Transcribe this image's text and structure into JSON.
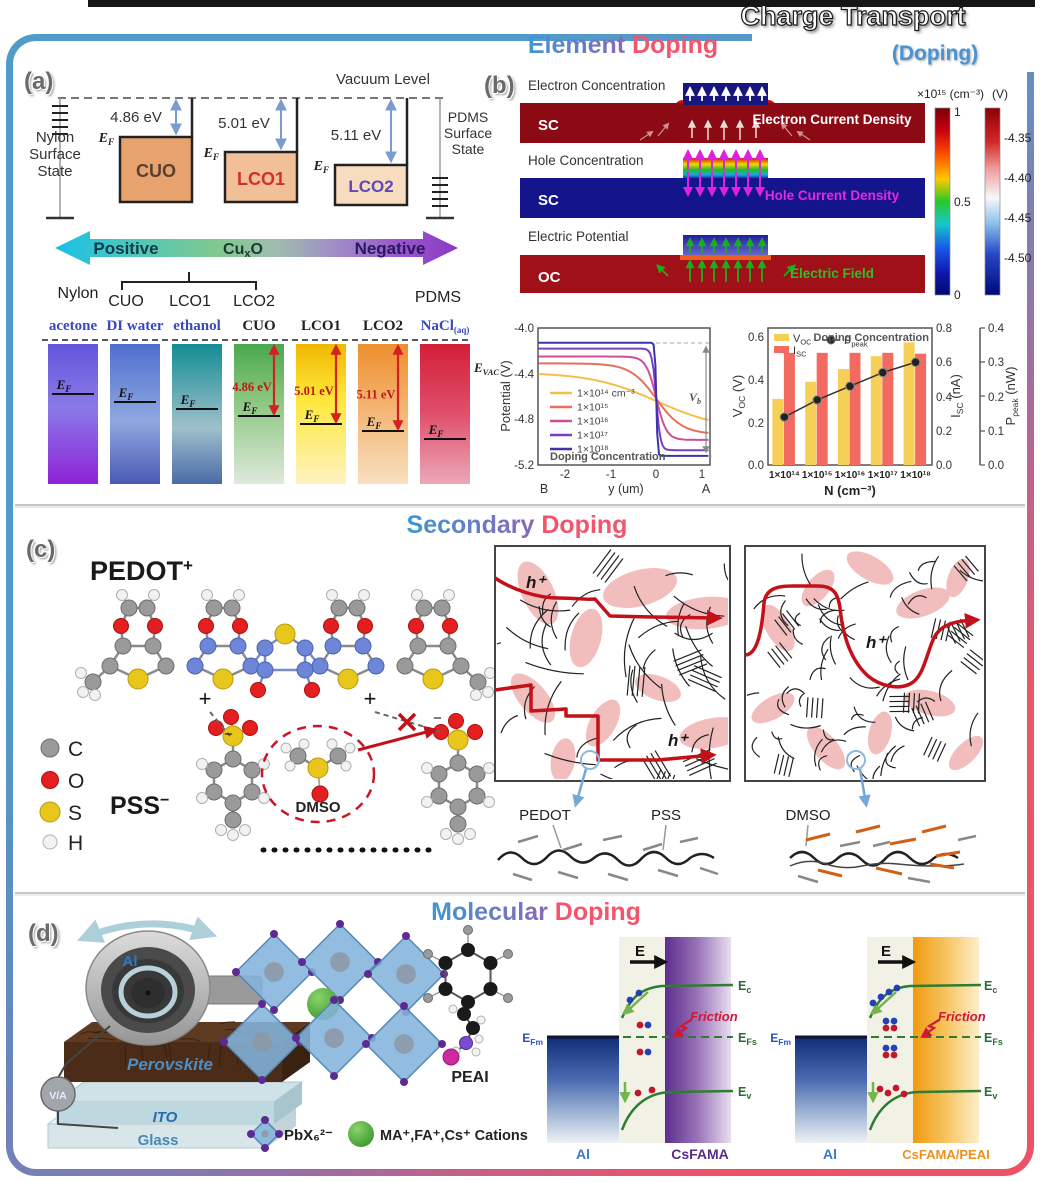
{
  "header": {
    "title": "Charge Transport",
    "subtitle": "(Doping)"
  },
  "section_titles": {
    "a1": "Element",
    "a2": "Doping",
    "c1": "Secondary",
    "c2": "Doping",
    "d1": "Molecular",
    "d2": "Doping"
  },
  "panel_a": {
    "label": "(a)",
    "vacuum_level": "Vacuum Level",
    "nylon_1": "Nylon",
    "nylon_2": "Surface",
    "nylon_3": "State",
    "pdms_1": "PDMS",
    "pdms_2": "Surface",
    "pdms_3": "State",
    "e": "E",
    "f_sub": "F",
    "wf": [
      "4.86 eV",
      "5.01 eV",
      "5.11 eV"
    ],
    "materials": [
      "CUO",
      "LCO1",
      "LCO2"
    ],
    "positive": "Positive",
    "negative": "Negative",
    "cu": "Cu",
    "cu_sub": "x",
    "cu_o": "O",
    "row": [
      "Nylon",
      "CUO",
      "LCO1",
      "LCO2",
      "PDMS"
    ],
    "evac": "E",
    "evac_sub": "VAC",
    "bar_labels": [
      "acetone",
      "DI water",
      "ethanol",
      "CUO",
      "LCO1",
      "LCO2"
    ],
    "nacl": "NaCl",
    "nacl_sub": "(aq)"
  },
  "panel_b": {
    "label": "(b)",
    "map_titles": [
      "Electron Concentration",
      "Hole Concentration",
      "Electric Potential"
    ],
    "regions": [
      "SC",
      "SC",
      "OC"
    ],
    "annotations": [
      "Electron Current Density",
      "Hole Current Density",
      "Electric Field"
    ],
    "cbar1_label": "×10¹⁵ (cm⁻³)",
    "cbar1_ticks": [
      "1",
      "0.5",
      "0"
    ],
    "cbar2_label": "(V)",
    "cbar2_ticks": [
      "-4.35",
      "-4.40",
      "-4.45",
      "-4.50"
    ]
  },
  "chart_data": [
    {
      "type": "line",
      "xlabel": "y (um)",
      "ylabel": "Potential (V)",
      "xticks": [
        "-2",
        "-1",
        "0",
        "1"
      ],
      "yticks": [
        "-4.0",
        "-4.4",
        "-4.8",
        "-5.2"
      ],
      "endpoints": [
        "B",
        "A"
      ],
      "legend_title": "Doping Concentration",
      "vb": "V",
      "vb_sub": "b",
      "xlim": [
        -2.6,
        1.2
      ],
      "ylim": [
        -5.2,
        -4.0
      ],
      "series": [
        {
          "name": "1×10¹⁴ cm⁻³",
          "color": "#f0c24a",
          "upper": -4.39,
          "lower": -4.89,
          "k": 1.4
        },
        {
          "name": "1×10¹⁵",
          "color": "#e5705c",
          "upper": -4.31,
          "lower": -4.93,
          "k": 3.5
        },
        {
          "name": "1×10¹⁶",
          "color": "#cc4f98",
          "upper": -4.25,
          "lower": -4.98,
          "k": 9
        },
        {
          "name": "1×10¹⁷",
          "color": "#7b3ec2",
          "upper": -4.18,
          "lower": -5.07,
          "k": 22
        },
        {
          "name": "1×10¹⁸",
          "color": "#3c34a8",
          "upper": -4.13,
          "lower": -5.12,
          "k": 70
        }
      ]
    },
    {
      "type": "bar",
      "xlabel": "N (cm⁻³)",
      "categories": [
        "1×10¹⁴",
        "1×10¹⁵",
        "1×10¹⁶",
        "1×10¹⁷",
        "1×10¹⁸"
      ],
      "legend_title": "Doping Concentration",
      "voc": {
        "v": "V",
        "sub": "OC",
        "unit": " (V)",
        "color": "#f6cf56",
        "values": [
          0.31,
          0.39,
          0.45,
          0.51,
          0.575
        ],
        "ticks": [
          "0.6",
          "0.4",
          "0.2",
          "0.0"
        ]
      },
      "isc": {
        "v": "I",
        "sub": "SC",
        "unit": " (nA)",
        "color": "#f26a60",
        "values": [
          0.655,
          0.655,
          0.655,
          0.655,
          0.65
        ],
        "ticks": [
          "0.8",
          "0.6",
          "0.4",
          "0.2",
          "0.0"
        ]
      },
      "ppeak": {
        "v": "P",
        "sub": "peak",
        "unit": " (nW)",
        "color": "#2a2a2a",
        "values": [
          0.14,
          0.19,
          0.23,
          0.27,
          0.3
        ],
        "ticks": [
          "0.4",
          "0.3",
          "0.2",
          "0.1",
          "0.0"
        ]
      }
    }
  ],
  "panel_c": {
    "label": "(c)",
    "pedot_base": "PEDOT",
    "pedot_sup": "+",
    "pss_base": "PSS",
    "pss_sup": "−",
    "dmso": "DMSO",
    "plus": "+",
    "minus": "−",
    "atoms": [
      "C",
      "O",
      "S",
      "H"
    ],
    "hplus": "h⁺",
    "labels": {
      "pedot": "PEDOT",
      "pss": "PSS",
      "dmso": "DMSO"
    }
  },
  "panel_d": {
    "label": "(d)",
    "al": "Al",
    "meter": "V/A",
    "perovskite": "Perovskite",
    "ito": "ITO",
    "glass": "Glass",
    "pbx": "PbX₆²⁻",
    "cations": "MA⁺,FA⁺,Cs⁺ Cations",
    "peai": "PEAI",
    "e_field": "E",
    "e": "E",
    "fm": "Fm",
    "fs": "Fs",
    "c": "c",
    "v": "v",
    "friction": "Friction",
    "left_metal": "Al",
    "left_sc": "CsFAMA",
    "right_metal": "Al",
    "right_sc": "CsFAMA/PEAI"
  }
}
